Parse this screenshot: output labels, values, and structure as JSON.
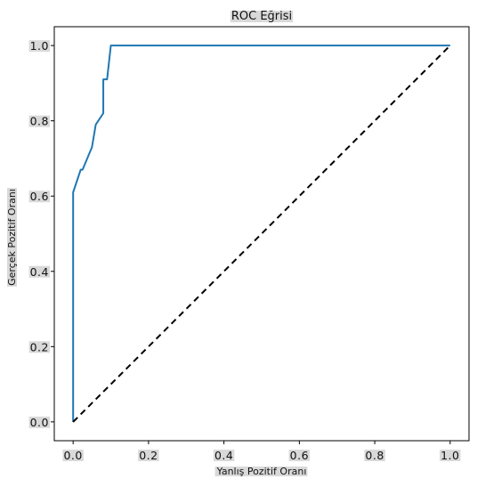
{
  "chart_data": {
    "type": "line",
    "title": "ROC Eğrisi",
    "xlabel": "Yanlış Pozitif Oranı",
    "ylabel": "Gerçek Pozitif Oranı",
    "xlim": [
      -0.05,
      1.05
    ],
    "ylim": [
      -0.05,
      1.05
    ],
    "xticks": [
      0.0,
      0.2,
      0.4,
      0.6,
      0.8,
      1.0
    ],
    "yticks": [
      0.0,
      0.2,
      0.4,
      0.6,
      0.8,
      1.0
    ],
    "xtick_labels": [
      "0.0",
      "0.2",
      "0.4",
      "0.6",
      "0.8",
      "1.0"
    ],
    "ytick_labels": [
      "0.0",
      "0.2",
      "0.4",
      "0.6",
      "0.8",
      "1.0"
    ],
    "grid": false,
    "series": [
      {
        "style": "solid",
        "color": "#1f77b4",
        "x": [
          0.0,
          0.0,
          0.0,
          0.02,
          0.025,
          0.05,
          0.06,
          0.06,
          0.08,
          0.08,
          0.09,
          0.1,
          1.0
        ],
        "y": [
          0.0,
          0.0,
          0.61,
          0.67,
          0.67,
          0.73,
          0.79,
          0.79,
          0.82,
          0.91,
          0.91,
          1.0,
          1.0
        ]
      },
      {
        "style": "dashed",
        "color": "#000000",
        "x": [
          0.0,
          1.0
        ],
        "y": [
          0.0,
          1.0
        ]
      }
    ]
  }
}
